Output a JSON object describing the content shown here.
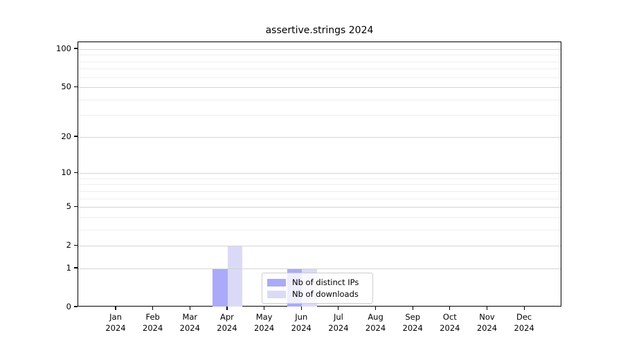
{
  "chart_data": {
    "type": "bar",
    "title": "assertive.strings 2024",
    "categories": [
      "Jan",
      "Feb",
      "Mar",
      "Apr",
      "May",
      "Jun",
      "Jul",
      "Aug",
      "Sep",
      "Oct",
      "Nov",
      "Dec"
    ],
    "year_label": "2024",
    "series": [
      {
        "name": "Nb of distinct IPs",
        "color": "#aaaaf8",
        "values": [
          0,
          0,
          0,
          1,
          0,
          1,
          0,
          0,
          0,
          0,
          0,
          0
        ]
      },
      {
        "name": "Nb of downloads",
        "color": "#dadaf8",
        "values": [
          0,
          0,
          0,
          2,
          0,
          1,
          0,
          0,
          0,
          0,
          0,
          0
        ]
      }
    ],
    "xlabel": "",
    "ylabel": "",
    "y_scale": "log1p",
    "y_ticks": [
      0,
      1,
      2,
      5,
      10,
      20,
      50,
      100
    ],
    "y_minor_gridlines": [
      3,
      4,
      6,
      7,
      8,
      9,
      30,
      40,
      60,
      70,
      80,
      90
    ],
    "ylim": [
      0,
      113
    ],
    "grid": "horizontal",
    "major_grid_color": "#d4d4d4",
    "minor_grid_color": "#efefef",
    "legend_position": "lower-center"
  }
}
